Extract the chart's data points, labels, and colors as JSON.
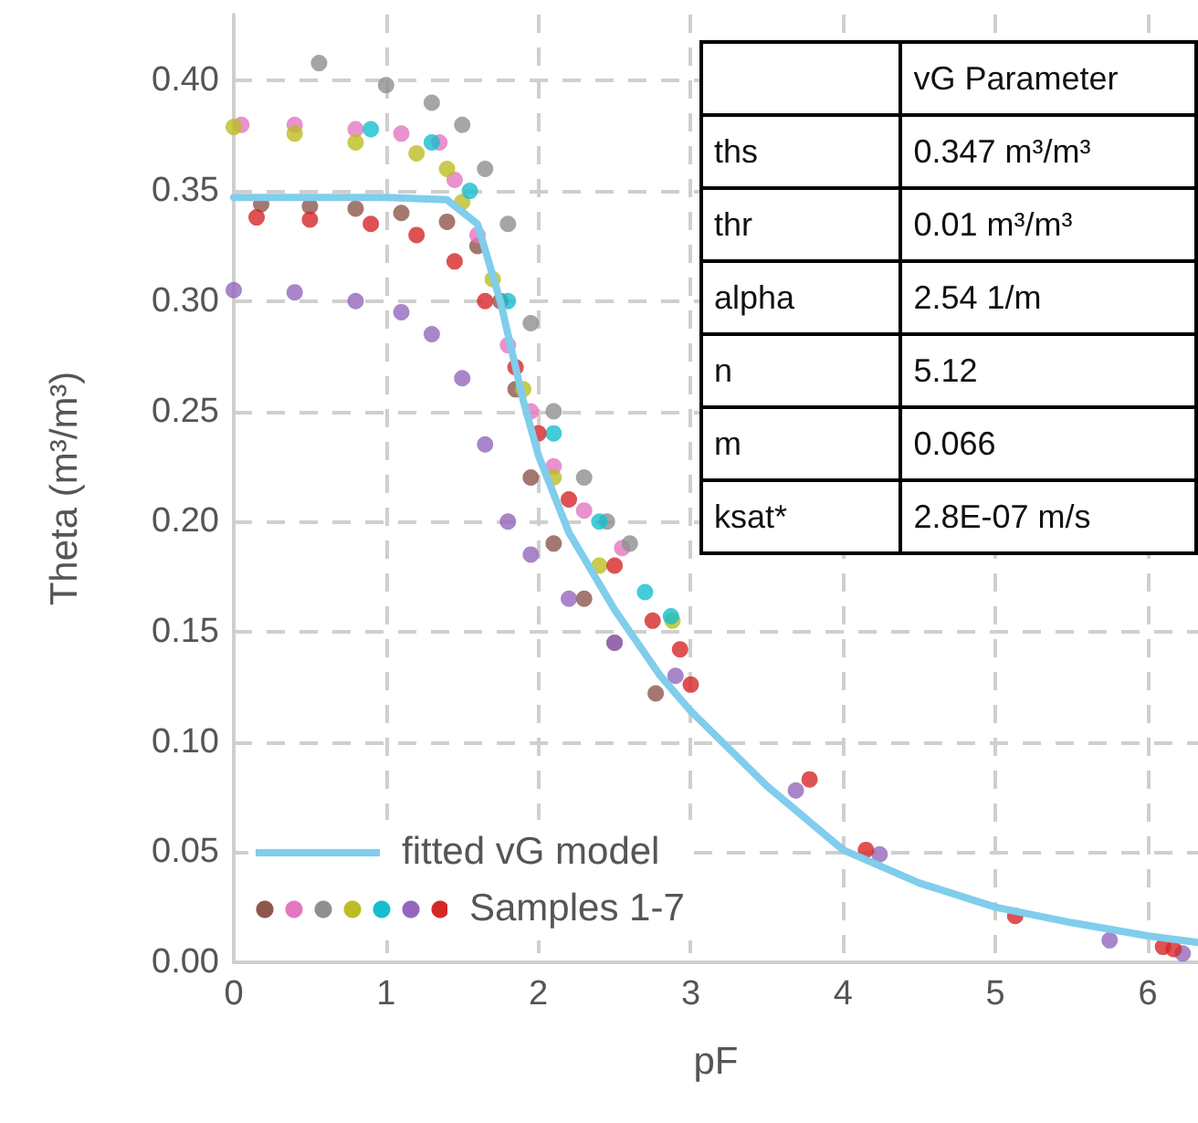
{
  "chart_data": [
    {
      "type": "scatter",
      "xlabel": "pF",
      "ylabel": "Theta (m³/m³)",
      "xlim": [
        0,
        6.33
      ],
      "ylim": [
        0,
        0.43
      ],
      "xticks": [
        0,
        1,
        2,
        3,
        4,
        5,
        6
      ],
      "yticks": [
        {
          "value": 0,
          "label": "0.00"
        },
        {
          "value": 0.05,
          "label": "0.05"
        },
        {
          "value": 0.1,
          "label": "0.10"
        },
        {
          "value": 0.15,
          "label": "0.15"
        },
        {
          "value": 0.2,
          "label": "0.20"
        },
        {
          "value": 0.25,
          "label": "0.25"
        },
        {
          "value": 0.3,
          "label": "0.30"
        },
        {
          "value": 0.35,
          "label": "0.35"
        },
        {
          "value": 0.4,
          "label": "0.40"
        }
      ],
      "grid": true,
      "legend": "bottom left",
      "marker": "circle",
      "series": [
        {
          "name": "Samples 1-7",
          "type": "scatter",
          "x": [
            0.18,
            0.5,
            0.8,
            1.1,
            1.4,
            1.6,
            1.75,
            1.85,
            1.95,
            2.1,
            2.3,
            2.5,
            2.77,
            0.05,
            0.4,
            0.8,
            1.1,
            1.35,
            1.45,
            1.6,
            1.8,
            1.95,
            2.1,
            2.3,
            2.55,
            0.56,
            1.0,
            1.3,
            1.5,
            1.65,
            1.8,
            1.95,
            2.1,
            2.3,
            2.45,
            2.6,
            0,
            0.4,
            0.8,
            1.2,
            1.4,
            1.5,
            1.7,
            1.9,
            2.1,
            2.4,
            2.88,
            0.9,
            1.3,
            1.55,
            1.8,
            2.1,
            2.4,
            2.7,
            2.87,
            0,
            0.4,
            0.8,
            1.1,
            1.3,
            1.5,
            1.65,
            1.8,
            1.95,
            2.2,
            2.5,
            2.9,
            3.69,
            4.24,
            5.75,
            6.23,
            0.15,
            0.5,
            0.9,
            1.2,
            1.45,
            1.65,
            1.85,
            2.0,
            2.2,
            2.5,
            2.75,
            2.93,
            3.0,
            3.78,
            4.15,
            5.13,
            6.1,
            6.17
          ],
          "values": [
            0.344,
            0.343,
            0.342,
            0.34,
            0.336,
            0.325,
            0.3,
            0.26,
            0.22,
            0.19,
            0.165,
            0.145,
            0.122,
            0.38,
            0.38,
            0.378,
            0.376,
            0.372,
            0.355,
            0.33,
            0.28,
            0.25,
            0.225,
            0.205,
            0.188,
            0.408,
            0.398,
            0.39,
            0.38,
            0.36,
            0.335,
            0.29,
            0.25,
            0.22,
            0.2,
            0.19,
            0.379,
            0.376,
            0.372,
            0.367,
            0.36,
            0.345,
            0.31,
            0.26,
            0.22,
            0.18,
            0.155,
            0.378,
            0.372,
            0.35,
            0.3,
            0.24,
            0.2,
            0.168,
            0.157,
            0.305,
            0.304,
            0.3,
            0.295,
            0.285,
            0.265,
            0.235,
            0.2,
            0.185,
            0.165,
            0.145,
            0.13,
            0.078,
            0.049,
            0.01,
            0.004,
            0.338,
            0.337,
            0.335,
            0.33,
            0.318,
            0.3,
            0.27,
            0.24,
            0.21,
            0.18,
            0.155,
            0.142,
            0.126,
            0.083,
            0.051,
            0.021,
            0.007,
            0.006
          ],
          "colors": [
            "#8c564b",
            "#8c564b",
            "#8c564b",
            "#8c564b",
            "#8c564b",
            "#8c564b",
            "#8c564b",
            "#8c564b",
            "#8c564b",
            "#8c564b",
            "#8c564b",
            "#8c564b",
            "#8c564b",
            "#e377c2",
            "#e377c2",
            "#e377c2",
            "#e377c2",
            "#e377c2",
            "#e377c2",
            "#e377c2",
            "#e377c2",
            "#e377c2",
            "#e377c2",
            "#e377c2",
            "#e377c2",
            "#8f8f8f",
            "#8f8f8f",
            "#8f8f8f",
            "#8f8f8f",
            "#8f8f8f",
            "#8f8f8f",
            "#8f8f8f",
            "#8f8f8f",
            "#8f8f8f",
            "#8f8f8f",
            "#8f8f8f",
            "#bcbd22",
            "#bcbd22",
            "#bcbd22",
            "#bcbd22",
            "#bcbd22",
            "#bcbd22",
            "#bcbd22",
            "#bcbd22",
            "#bcbd22",
            "#bcbd22",
            "#bcbd22",
            "#17becf",
            "#17becf",
            "#17becf",
            "#17becf",
            "#17becf",
            "#17becf",
            "#17becf",
            "#17becf",
            "#9467bd",
            "#9467bd",
            "#9467bd",
            "#9467bd",
            "#9467bd",
            "#9467bd",
            "#9467bd",
            "#9467bd",
            "#9467bd",
            "#9467bd",
            "#9467bd",
            "#9467bd",
            "#9467bd",
            "#9467bd",
            "#9467bd",
            "#9467bd",
            "#d62728",
            "#d62728",
            "#d62728",
            "#d62728",
            "#d62728",
            "#d62728",
            "#d62728",
            "#d62728",
            "#d62728",
            "#d62728",
            "#d62728",
            "#d62728",
            "#d62728",
            "#d62728",
            "#d62728",
            "#d62728",
            "#d62728",
            "#d62728"
          ]
        },
        {
          "name": "fitted vG model",
          "type": "line",
          "color": "#80cdec",
          "marker": "none",
          "line_style": "solid",
          "x": [
            0,
            1.0,
            1.4,
            1.6,
            1.75,
            1.9,
            2.0,
            2.2,
            2.5,
            2.8,
            3.0,
            3.5,
            4.0,
            4.5,
            5.0,
            5.5,
            6.0,
            6.33
          ],
          "values": [
            0.347,
            0.347,
            0.346,
            0.335,
            0.3,
            0.255,
            0.23,
            0.195,
            0.16,
            0.13,
            0.114,
            0.08,
            0.051,
            0.036,
            0.025,
            0.018,
            0.012,
            0.009
          ]
        }
      ]
    },
    {
      "type": "other",
      "title": "vG Parameter",
      "annotations": [
        "ths",
        "0.347 m³/m³",
        "thr",
        "0.01 m³/m³",
        "alpha",
        "2.54 1/m",
        "n",
        "5.12",
        "m",
        "0.066",
        "ksat*",
        "2.8E-07 m/s"
      ]
    }
  ]
}
